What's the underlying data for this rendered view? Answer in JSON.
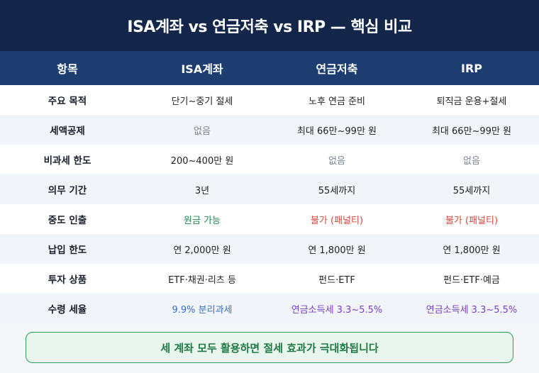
{
  "title": "ISA계좌 vs 연금저축 vs IRP — 핵심 비교",
  "header": {
    "col0": "항목",
    "col1": "ISA계좌",
    "col2": "연금저축",
    "col3": "IRP"
  },
  "rows": [
    {
      "label": "주요 목적",
      "isa": "단기~중기 절세",
      "pension": "노후 연금 준비",
      "irp": "퇴직금 운용+절세"
    },
    {
      "label": "세액공제",
      "isa": "없음",
      "pension": "최대 66만~99만 원",
      "irp": "최대 66만~99만 원"
    },
    {
      "label": "비과세 한도",
      "isa": "200~400만 원",
      "pension": "없음",
      "irp": "없음"
    },
    {
      "label": "의무 기간",
      "isa": "3년",
      "pension": "55세까지",
      "irp": "55세까지"
    },
    {
      "label": "중도 인출",
      "isa": "원금 가능",
      "pension": "불가 (패널티)",
      "irp": "불가 (패널티)"
    },
    {
      "label": "납입 한도",
      "isa": "연 2,000만 원",
      "pension": "연 1,800만 원",
      "irp": "연 1,800만 원"
    },
    {
      "label": "투자 상품",
      "isa": "ETF·채권·리츠 등",
      "pension": "펀드·ETF",
      "irp": "펀드·ETF·예금"
    },
    {
      "label": "수령 세율",
      "isa": "9.9% 분리과세",
      "pension": "연금소득세 3.3~5.5%",
      "irp": "연금소득세 3.3~5.5%"
    }
  ],
  "footer_note": "세 계좌 모두 활용하면 절세 효과가 극대화됩니다",
  "colors": {
    "title_bg": "#13264a",
    "header_bg": "#1d3d70",
    "positive": "#1f8a4e",
    "negative": "#d24a3a",
    "tax_isa": "#3b6fc4",
    "tax_pension": "#7a3fbf",
    "muted": "#7d8493"
  }
}
